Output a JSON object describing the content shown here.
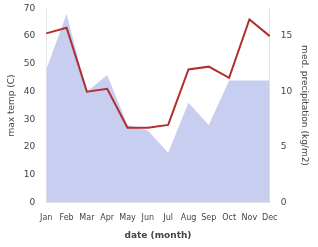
{
  "chart_data": {
    "type": "line",
    "categories": [
      "Jan",
      "Feb",
      "Mar",
      "Apr",
      "May",
      "Jun",
      "Jul",
      "Aug",
      "Sep",
      "Oct",
      "Nov",
      "Dec"
    ],
    "series": [
      {
        "type": "area",
        "color": "#c8cef0",
        "axis": "y2",
        "values": [
          12,
          17,
          10,
          11.5,
          7,
          6.5,
          4.5,
          9,
          7,
          11,
          11,
          11
        ]
      },
      {
        "type": "line",
        "color": "#b03030",
        "values": [
          61,
          63,
          40,
          41,
          27,
          27,
          28,
          48,
          49,
          45,
          66,
          60
        ]
      }
    ],
    "x_label": "date (month)",
    "y_label": "max temp (C)",
    "y2_label": "med. precipitation (kg/m2)",
    "ylim": [
      0,
      70
    ],
    "yticks": [
      0,
      10,
      20,
      30,
      40,
      50,
      60,
      70
    ],
    "y2lim": [
      0,
      17.5
    ],
    "y2ticks": [
      0,
      5,
      10,
      15
    ],
    "grid": false
  }
}
